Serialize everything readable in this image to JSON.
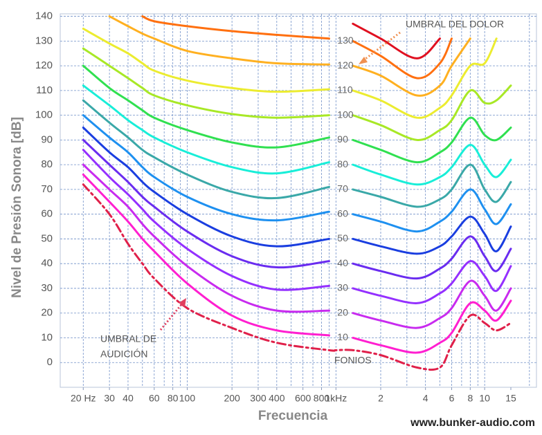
{
  "chart_data": {
    "type": "line",
    "xlabel": "Frecuencia",
    "ylabel": "Nivel de Presión Sonora [dB]",
    "xscale": "log",
    "grid": true,
    "xlim": [
      14,
      22300
    ],
    "ylim": [
      -10,
      141
    ],
    "yticks": [
      0,
      10,
      20,
      30,
      40,
      50,
      60,
      70,
      80,
      90,
      100,
      110,
      120,
      130,
      140
    ],
    "xticks": [
      {
        "value": 20,
        "label": "20 Hz"
      },
      30,
      40,
      60,
      80,
      100,
      200,
      300,
      400,
      600,
      800,
      {
        "value": 1000,
        "label": "1kHz"
      },
      {
        "value": 2000,
        "label": "2"
      },
      {
        "value": 4000,
        "label": "4"
      },
      {
        "value": 6000,
        "label": "6"
      },
      {
        "value": 8000,
        "label": "8"
      },
      {
        "value": 10000,
        "label": "10"
      },
      {
        "value": 15000,
        "label": "15"
      }
    ],
    "xgrid": [
      20,
      30,
      40,
      50,
      60,
      70,
      80,
      90,
      100,
      200,
      300,
      400,
      500,
      600,
      700,
      800,
      900,
      1000,
      2000,
      3000,
      4000,
      5000,
      6000,
      7000,
      8000,
      9000,
      10000,
      20000
    ],
    "x": [
      20,
      30,
      40,
      50,
      60,
      100,
      200,
      400,
      900,
      1000,
      1300,
      2000,
      3500,
      5000,
      6000,
      8000,
      10000,
      12000,
      15000
    ],
    "series": [
      {
        "name": "10",
        "color": "#ff1fd0",
        "values": [
          76,
          65,
          57,
          50,
          45,
          32,
          19,
          13,
          11,
          null,
          10,
          7,
          4,
          8,
          12,
          24,
          21,
          17,
          25
        ]
      },
      {
        "name": "20",
        "color": "#c82bef",
        "values": [
          80,
          70,
          63,
          56,
          51,
          39,
          27,
          21,
          21,
          null,
          20,
          17,
          14,
          18,
          22,
          33,
          27,
          21,
          30
        ]
      },
      {
        "name": "30",
        "color": "#9430ff",
        "values": [
          86,
          75,
          68,
          62,
          57,
          46,
          35,
          29.5,
          31,
          null,
          30,
          27,
          24,
          28,
          32,
          41,
          35,
          29,
          39
        ]
      },
      {
        "name": "40",
        "color": "#6a2cf0",
        "values": [
          90,
          80,
          73,
          67,
          63,
          53,
          43,
          38.5,
          41,
          null,
          40,
          37,
          34,
          38,
          42,
          51,
          43,
          37,
          46
        ]
      },
      {
        "name": "50",
        "color": "#1a3ee0",
        "values": [
          95,
          85,
          79,
          73,
          69,
          60,
          51,
          47,
          50,
          null,
          50,
          47,
          44,
          47,
          51,
          59,
          52,
          45,
          55
        ]
      },
      {
        "name": "60",
        "color": "#1e90f0",
        "values": [
          100,
          91,
          85,
          79,
          75,
          67,
          60,
          57.5,
          61,
          null,
          60,
          57,
          53,
          57,
          61,
          70,
          62,
          56,
          64
        ]
      },
      {
        "name": "70",
        "color": "#3aa8a8",
        "values": [
          106,
          97,
          91,
          86,
          83,
          76,
          69,
          66.5,
          71,
          null,
          70,
          67,
          63,
          66,
          70,
          80,
          70,
          65,
          73
        ]
      },
      {
        "name": "80",
        "color": "#18eed8",
        "values": [
          112,
          104,
          98,
          94,
          91,
          85,
          79,
          76.5,
          81,
          null,
          80,
          76,
          72,
          75,
          79,
          88,
          80,
          75,
          82
        ]
      },
      {
        "name": "90",
        "color": "#30e050",
        "values": [
          120,
          111,
          106,
          102,
          99,
          94,
          89,
          87,
          91,
          null,
          90,
          86,
          81,
          85,
          89,
          99,
          92,
          90,
          95
        ]
      },
      {
        "name": "100",
        "color": "#a8e826",
        "values": [
          127,
          120,
          115,
          111,
          108,
          104,
          100.5,
          99,
          100,
          null,
          100,
          96,
          90,
          94,
          98,
          110,
          105,
          106,
          112
        ]
      },
      {
        "name": "110",
        "color": "#ecec30",
        "values": [
          135,
          129,
          125,
          121,
          118,
          114,
          111,
          109.5,
          110.5,
          null,
          110,
          106,
          99,
          103,
          108,
          120,
          121,
          131,
          null
        ]
      },
      {
        "name": "120",
        "color": "#ffb020",
        "values": [
          null,
          140,
          136,
          133,
          131,
          126,
          123,
          121,
          120.5,
          null,
          120,
          116,
          108,
          112,
          120,
          131,
          null,
          null,
          null
        ]
      },
      {
        "name": "130",
        "color": "#ff7010",
        "values": [
          null,
          null,
          null,
          140,
          138,
          136,
          134,
          132.5,
          131,
          null,
          130,
          124,
          115,
          121,
          131,
          null,
          null,
          null,
          null
        ]
      },
      {
        "color": "#e01020",
        "values": [
          null,
          null,
          null,
          null,
          null,
          null,
          null,
          null,
          null,
          null,
          137,
          131,
          123,
          131,
          null,
          null,
          null,
          null,
          null
        ]
      },
      {
        "color": "#e0204a",
        "style": "dashdot",
        "values": [
          72,
          60,
          48,
          40,
          34,
          22,
          14,
          8,
          5,
          5,
          5,
          3,
          -2,
          -2,
          7,
          19,
          16,
          13,
          16
        ]
      }
    ],
    "annotations": [
      "UMBRAL DEL DOLOR",
      "UMBRAL DE",
      "AUDICIÓN",
      "FONIOS"
    ],
    "source": "www.bunker-audio.com"
  }
}
